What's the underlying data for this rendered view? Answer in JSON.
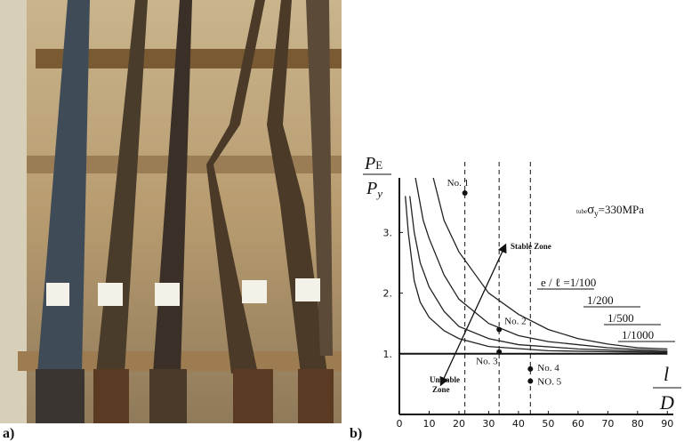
{
  "panels": {
    "a": "a)",
    "b": "b)"
  },
  "chart_data": {
    "type": "line",
    "y_label": {
      "numerator": "P",
      "numerator_sub": "E",
      "denominator": "P",
      "denominator_sub": "y"
    },
    "x_label": {
      "numerator": "l",
      "denominator": "D"
    },
    "xlim": [
      0,
      92
    ],
    "xticks": [
      0,
      10,
      20,
      30,
      40,
      50,
      60,
      70,
      80,
      90
    ],
    "ylim": [
      0,
      3.9
    ],
    "yticks": [
      {
        "value": 1,
        "label": "1."
      },
      {
        "value": 2,
        "label": "2."
      },
      {
        "value": 3,
        "label": "3."
      }
    ],
    "reference_line": 1,
    "dashed_x": [
      22,
      33.5,
      44
    ],
    "series": [
      {
        "name": "e / ℓ =1/100",
        "color": "#222222",
        "x": [
          11.4,
          15,
          20,
          30,
          40,
          50,
          60,
          70,
          80,
          90
        ],
        "values": [
          3.9,
          3.2,
          2.68,
          2.0,
          1.65,
          1.4,
          1.25,
          1.16,
          1.1,
          1.08
        ]
      },
      {
        "name": "1/200",
        "color": "#222222",
        "x": [
          5.4,
          8,
          10,
          15,
          20,
          30,
          40,
          50,
          60,
          70,
          80,
          90
        ],
        "values": [
          3.9,
          3.2,
          2.9,
          2.3,
          1.9,
          1.5,
          1.3,
          1.2,
          1.15,
          1.1,
          1.07,
          1.05
        ]
      },
      {
        "name": "1/500",
        "color": "#222222",
        "x": [
          3.5,
          5,
          7,
          10,
          15,
          20,
          30,
          40,
          60,
          90
        ],
        "values": [
          3.6,
          3.0,
          2.5,
          2.1,
          1.7,
          1.45,
          1.25,
          1.15,
          1.08,
          1.03
        ]
      },
      {
        "name": "1/1000",
        "color": "#222222",
        "x": [
          2,
          3,
          5,
          7,
          10,
          15,
          20,
          30,
          50,
          90
        ],
        "values": [
          3.6,
          3.0,
          2.2,
          1.85,
          1.6,
          1.38,
          1.25,
          1.12,
          1.05,
          1.02
        ]
      }
    ],
    "points": [
      {
        "label": "No. 1",
        "x": 22,
        "y": 3.65
      },
      {
        "label": "No. 2",
        "x": 33.5,
        "y": 1.4
      },
      {
        "label": "No. 3",
        "x": 33.5,
        "y": 1.03
      },
      {
        "label": "No. 4",
        "x": 44,
        "y": 0.75
      },
      {
        "label": "NO. 5",
        "x": 44,
        "y": 0.55
      }
    ],
    "stable_zone": "Stable Zone",
    "unstable_zone": [
      "Unstable",
      "Zone"
    ],
    "material_label": {
      "prefix": "tube",
      "symbol": "σ",
      "sub": "y",
      "rest": "=330MPa"
    }
  }
}
